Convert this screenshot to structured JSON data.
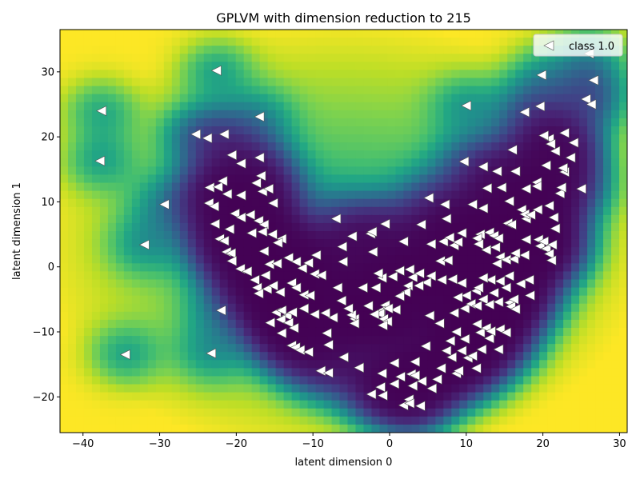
{
  "chart_data": {
    "type": "scatter",
    "title": "GPLVM with dimension reduction to 215",
    "xlabel": "latent dimension 0",
    "ylabel": "latent dimension 1",
    "xlim": [
      -43,
      31
    ],
    "ylim": [
      -25.5,
      36.5
    ],
    "xticks": [
      -40,
      -30,
      -20,
      -10,
      0,
      10,
      20,
      30
    ],
    "yticks": [
      -20,
      -10,
      0,
      10,
      20,
      30
    ],
    "xtick_labels": [
      "−40",
      "−30",
      "−20",
      "−10",
      "0",
      "10",
      "20",
      "30"
    ],
    "ytick_labels": [
      "−20",
      "−10",
      "0",
      "10",
      "20",
      "30"
    ],
    "grid": false,
    "legend_position": "top-right",
    "background": "heatmap of predictive variance (viridis): dark purple along the U-shaped data manifold, bright yellow-green far from data",
    "series": [
      {
        "name": "class 1.0",
        "marker": "triangle-left",
        "color": "#ffffff",
        "edgecolor": "#555555",
        "points": [
          [
            -37.6,
            24.0
          ],
          [
            -37.8,
            16.3
          ],
          [
            -34.5,
            -13.5
          ],
          [
            -32.0,
            3.4
          ],
          [
            -29.4,
            9.6
          ],
          [
            -25.3,
            20.4
          ],
          [
            -23.8,
            19.8
          ],
          [
            -22.6,
            30.2
          ],
          [
            -21.6,
            20.4
          ],
          [
            -17.0,
            23.1
          ],
          [
            -23.3,
            -13.3
          ],
          [
            -22.0,
            -6.7
          ],
          [
            -23.5,
            12.2
          ],
          [
            -22.4,
            12.3
          ],
          [
            -21.8,
            13.2
          ],
          [
            -21.2,
            11.2
          ],
          [
            -20.6,
            17.2
          ],
          [
            -19.4,
            15.9
          ],
          [
            -17.0,
            16.8
          ],
          [
            -19.4,
            11.0
          ],
          [
            -17.4,
            12.9
          ],
          [
            -16.8,
            14.0
          ],
          [
            -16.6,
            11.6
          ],
          [
            -15.8,
            12.0
          ],
          [
            -15.2,
            9.8
          ],
          [
            -23.6,
            9.8
          ],
          [
            -22.9,
            9.3
          ],
          [
            -22.8,
            6.6
          ],
          [
            -20.2,
            8.2
          ],
          [
            -19.4,
            7.6
          ],
          [
            -18.2,
            8.0
          ],
          [
            -17.1,
            7.1
          ],
          [
            -16.4,
            6.5
          ],
          [
            -22.2,
            4.3
          ],
          [
            -21.6,
            4.0
          ],
          [
            -20.9,
            5.8
          ],
          [
            -18.0,
            5.2
          ],
          [
            -16.6,
            5.4
          ],
          [
            -15.3,
            5.0
          ],
          [
            -14.1,
            4.3
          ],
          [
            -14.6,
            3.7
          ],
          [
            -21.3,
            2.3
          ],
          [
            -20.7,
            2.1
          ],
          [
            -20.6,
            0.9
          ],
          [
            -19.5,
            -0.3
          ],
          [
            -18.6,
            -0.7
          ],
          [
            -16.4,
            2.4
          ],
          [
            -15.7,
            0.4
          ],
          [
            -14.7,
            0.5
          ],
          [
            -13.2,
            1.4
          ],
          [
            -12.2,
            0.8
          ],
          [
            -11.4,
            -0.2
          ],
          [
            -10.6,
            0.6
          ],
          [
            -9.6,
            1.8
          ],
          [
            -9.8,
            -1.1
          ],
          [
            -8.9,
            -1.3
          ],
          [
            -17.6,
            -2.0
          ],
          [
            -17.3,
            -3.2
          ],
          [
            -16.0,
            -3.4
          ],
          [
            -15.2,
            -2.9
          ],
          [
            -14.3,
            -3.9
          ],
          [
            -12.8,
            -2.5
          ],
          [
            -12.2,
            -3.2
          ],
          [
            -11.2,
            -4.3
          ],
          [
            -10.4,
            -4.4
          ],
          [
            -17.1,
            -4.1
          ],
          [
            -16.2,
            -1.3
          ],
          [
            -14.8,
            -7.0
          ],
          [
            -14.1,
            -6.7
          ],
          [
            -13.4,
            -7.5
          ],
          [
            -12.7,
            -7.0
          ],
          [
            -11.2,
            -6.4
          ],
          [
            -9.8,
            -7.3
          ],
          [
            -15.6,
            -8.6
          ],
          [
            -14.2,
            -8.1
          ],
          [
            -13.2,
            -8.6
          ],
          [
            -12.5,
            -9.4
          ],
          [
            -14.1,
            -10.2
          ],
          [
            -12.8,
            -12.1
          ],
          [
            -12.3,
            -12.4
          ],
          [
            -11.7,
            -12.8
          ],
          [
            -10.6,
            -13.1
          ],
          [
            -8.2,
            -10.2
          ],
          [
            -8.0,
            -12.0
          ],
          [
            -9.0,
            -16.0
          ],
          [
            -8.0,
            -16.3
          ],
          [
            -6.0,
            -13.9
          ],
          [
            -4.0,
            -15.5
          ],
          [
            -2.4,
            -19.6
          ],
          [
            -1.2,
            -18.5
          ],
          [
            -1.0,
            -16.4
          ],
          [
            -0.9,
            -19.8
          ],
          [
            0.6,
            -18.0
          ],
          [
            0.6,
            -14.8
          ],
          [
            1.4,
            -16.9
          ],
          [
            1.8,
            -21.3
          ],
          [
            2.5,
            -20.4
          ],
          [
            2.6,
            -21.0
          ],
          [
            2.8,
            -16.5
          ],
          [
            3.0,
            -18.3
          ],
          [
            3.3,
            -16.7
          ],
          [
            3.3,
            -14.6
          ],
          [
            4.0,
            -21.4
          ],
          [
            4.2,
            -17.6
          ],
          [
            4.7,
            -12.2
          ],
          [
            5.5,
            -18.7
          ],
          [
            6.2,
            -17.3
          ],
          [
            6.7,
            -15.6
          ],
          [
            7.4,
            -12.9
          ],
          [
            8.1,
            -13.9
          ],
          [
            8.7,
            -16.4
          ],
          [
            9.0,
            -16.0
          ],
          [
            9.4,
            -12.9
          ],
          [
            10.2,
            -14.0
          ],
          [
            10.8,
            -13.7
          ],
          [
            11.3,
            -15.6
          ],
          [
            12.0,
            -12.7
          ],
          [
            13.0,
            -11.0
          ],
          [
            14.2,
            -12.7
          ],
          [
            7.9,
            -11.4
          ],
          [
            8.7,
            -10.0
          ],
          [
            9.8,
            -11.1
          ],
          [
            11.8,
            -10.1
          ],
          [
            12.6,
            -9.4
          ],
          [
            13.2,
            -9.9
          ],
          [
            14.4,
            -9.6
          ],
          [
            15.2,
            -10.1
          ],
          [
            11.4,
            -8.8
          ],
          [
            5.2,
            -7.5
          ],
          [
            6.5,
            -8.7
          ],
          [
            8.4,
            -7.1
          ],
          [
            9.8,
            -6.4
          ],
          [
            10.6,
            -5.7
          ],
          [
            11.4,
            -6.0
          ],
          [
            12.2,
            -5.0
          ],
          [
            13.0,
            -5.8
          ],
          [
            14.2,
            -5.4
          ],
          [
            15.6,
            -5.5
          ],
          [
            15.8,
            -6.1
          ],
          [
            16.2,
            -5.0
          ],
          [
            16.4,
            -6.5
          ],
          [
            18.3,
            -4.4
          ],
          [
            17.1,
            -2.6
          ],
          [
            15.6,
            -1.4
          ],
          [
            14.4,
            -2.2
          ],
          [
            13.2,
            -2.0
          ],
          [
            12.2,
            -1.7
          ],
          [
            11.3,
            -3.7
          ],
          [
            10.0,
            -4.4
          ],
          [
            8.9,
            -4.7
          ],
          [
            9.4,
            -2.5
          ],
          [
            8.2,
            -1.9
          ],
          [
            6.8,
            -2.0
          ],
          [
            5.4,
            -1.4
          ],
          [
            4.8,
            -2.4
          ],
          [
            3.8,
            -2.9
          ],
          [
            3.0,
            -1.6
          ],
          [
            2.6,
            -0.4
          ],
          [
            1.3,
            -0.6
          ],
          [
            2.4,
            -2.9
          ],
          [
            2.1,
            -3.9
          ],
          [
            1.3,
            -4.5
          ],
          [
            0.8,
            -6.6
          ],
          [
            -0.6,
            -5.9
          ],
          [
            -1.2,
            -6.8
          ],
          [
            -1.3,
            -7.2
          ],
          [
            -0.8,
            -8.0
          ],
          [
            -0.3,
            -8.4
          ],
          [
            -0.9,
            -9.0
          ],
          [
            -2.8,
            -6.0
          ],
          [
            -4.6,
            -8.0
          ],
          [
            -5.0,
            -7.4
          ],
          [
            -4.6,
            -8.7
          ],
          [
            -5.4,
            -6.4
          ],
          [
            -6.3,
            -5.2
          ],
          [
            -6.8,
            -3.2
          ],
          [
            -7.4,
            -7.8
          ],
          [
            -8.4,
            -7.1
          ],
          [
            -1.8,
            -3.2
          ],
          [
            -1.0,
            -1.7
          ],
          [
            -1.5,
            -1.0
          ],
          [
            -2.2,
            2.3
          ],
          [
            -2.5,
            5.1
          ],
          [
            -2.3,
            5.4
          ],
          [
            -0.6,
            6.6
          ],
          [
            -4.9,
            4.7
          ],
          [
            -6.2,
            3.1
          ],
          [
            -6.1,
            0.8
          ],
          [
            -7.0,
            7.4
          ],
          [
            1.8,
            3.9
          ],
          [
            4.1,
            6.5
          ],
          [
            5.1,
            10.6
          ],
          [
            5.4,
            3.5
          ],
          [
            6.6,
            0.9
          ],
          [
            7.6,
            1.0
          ],
          [
            7.0,
            3.9
          ],
          [
            7.4,
            7.4
          ],
          [
            7.2,
            9.6
          ],
          [
            7.8,
            4.5
          ],
          [
            8.4,
            3.3
          ],
          [
            8.9,
            3.8
          ],
          [
            9.4,
            5.2
          ],
          [
            10.8,
            9.6
          ],
          [
            12.2,
            9.0
          ],
          [
            11.8,
            5.0
          ],
          [
            11.4,
            4.4
          ],
          [
            11.6,
            3.5
          ],
          [
            12.6,
            2.6
          ],
          [
            13.0,
            5.3
          ],
          [
            13.6,
            4.8
          ],
          [
            14.2,
            4.4
          ],
          [
            13.8,
            3.0
          ],
          [
            14.4,
            1.5
          ],
          [
            15.2,
            1.1
          ],
          [
            14.0,
            0.5
          ],
          [
            15.4,
            6.7
          ],
          [
            15.9,
            6.5
          ],
          [
            16.2,
            1.2
          ],
          [
            17.6,
            1.8
          ],
          [
            16.4,
            2.1
          ],
          [
            17.8,
            4.2
          ],
          [
            17.8,
            7.4
          ],
          [
            17.2,
            8.8
          ],
          [
            17.6,
            8.1
          ],
          [
            18.4,
            8.0
          ],
          [
            19.3,
            8.8
          ],
          [
            19.4,
            4.2
          ],
          [
            19.6,
            3.2
          ],
          [
            20.1,
            3.9
          ],
          [
            20.4,
            2.8
          ],
          [
            20.8,
            2.0
          ],
          [
            21.2,
            3.4
          ],
          [
            21.1,
            1.0
          ],
          [
            20.8,
            9.4
          ],
          [
            21.4,
            7.6
          ],
          [
            21.6,
            5.9
          ],
          [
            17.8,
            12.0
          ],
          [
            19.2,
            13.0
          ],
          [
            20.4,
            15.6
          ],
          [
            16.4,
            14.7
          ],
          [
            14.6,
            12.2
          ],
          [
            12.7,
            12.1
          ],
          [
            15.6,
            10.1
          ],
          [
            14.0,
            14.7
          ],
          [
            12.2,
            15.4
          ],
          [
            9.7,
            16.2
          ],
          [
            16.0,
            18.0
          ],
          [
            19.2,
            12.4
          ],
          [
            22.2,
            11.3
          ],
          [
            22.4,
            12.2
          ],
          [
            22.8,
            14.6
          ],
          [
            22.6,
            15.2
          ],
          [
            23.6,
            16.8
          ],
          [
            24.0,
            19.1
          ],
          [
            22.8,
            20.6
          ],
          [
            21.6,
            17.8
          ],
          [
            20.8,
            19.7
          ],
          [
            21.0,
            18.9
          ],
          [
            20.1,
            20.2
          ],
          [
            25.0,
            12.0
          ],
          [
            17.6,
            23.8
          ],
          [
            19.6,
            24.7
          ],
          [
            10.0,
            24.8
          ],
          [
            25.6,
            25.8
          ],
          [
            26.3,
            25.0
          ],
          [
            19.8,
            29.5
          ],
          [
            26.6,
            28.7
          ],
          [
            26.0,
            32.8
          ],
          [
            13.6,
            -4.0
          ],
          [
            11.6,
            -3.2
          ],
          [
            15.2,
            -3.2
          ],
          [
            18.2,
            -2.0
          ],
          [
            3.9,
            -1.0
          ],
          [
            0.4,
            -1.5
          ],
          [
            -0.2,
            -6.4
          ],
          [
            -2.0,
            -7.3
          ],
          [
            -3.5,
            -3.2
          ]
        ]
      }
    ]
  }
}
